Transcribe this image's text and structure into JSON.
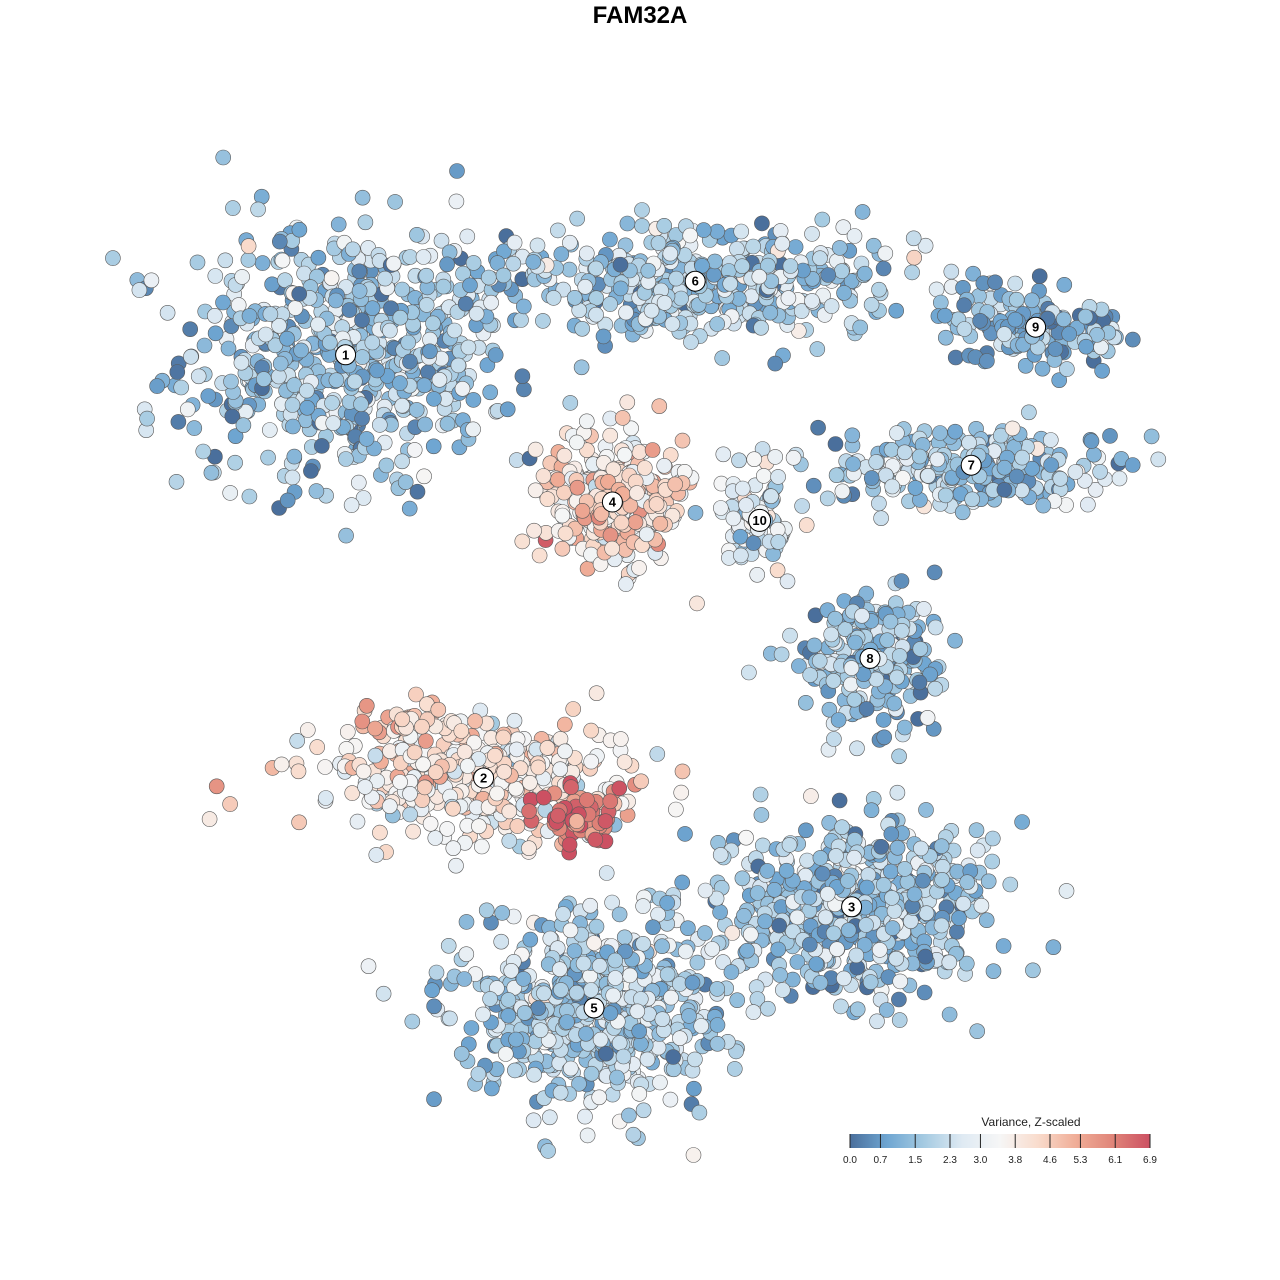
{
  "chart_data": {
    "type": "scatter",
    "title": "FAM32A",
    "xlabel": "",
    "ylabel": "",
    "grid": false,
    "legend": {
      "title": "Variance, Z-scaled",
      "placement": "bottom-right",
      "ticks": [
        "0.0",
        "0.7",
        "1.5",
        "2.3",
        "3.0",
        "3.8",
        "4.6",
        "5.3",
        "6.1",
        "6.9"
      ],
      "range": [
        0.0,
        6.9
      ],
      "colors": [
        "#4a6f9c",
        "#6fa6d2",
        "#a6cbe2",
        "#dfeaf3",
        "#f6f6f6",
        "#f9dccd",
        "#f0ae98",
        "#e08579",
        "#cc5062"
      ]
    },
    "clusters": [
      {
        "id": "1",
        "x": -3.2,
        "y": 3.1,
        "spread": [
          1.6,
          1.3
        ],
        "n": 620,
        "mean": 1.6
      },
      {
        "id": "6",
        "x": 0.6,
        "y": 3.9,
        "spread": [
          2.2,
          0.55
        ],
        "n": 480,
        "mean": 1.9
      },
      {
        "id": "9",
        "x": 4.3,
        "y": 3.4,
        "spread": [
          0.9,
          0.35
        ],
        "n": 140,
        "mean": 1.1
      },
      {
        "id": "7",
        "x": 3.6,
        "y": 1.9,
        "spread": [
          1.5,
          0.4
        ],
        "n": 260,
        "mean": 1.7
      },
      {
        "id": "4",
        "x": -0.3,
        "y": 1.5,
        "spread": [
          0.7,
          0.65
        ],
        "n": 300,
        "mean": 3.8
      },
      {
        "id": "10",
        "x": 1.3,
        "y": 1.3,
        "spread": [
          0.35,
          0.55
        ],
        "n": 90,
        "mean": 2.6
      },
      {
        "id": "8",
        "x": 2.5,
        "y": -0.2,
        "spread": [
          0.7,
          0.6
        ],
        "n": 230,
        "mean": 1.4
      },
      {
        "id": "2",
        "x": -1.7,
        "y": -1.5,
        "spread": [
          1.5,
          0.55
        ],
        "n": 420,
        "mean": 3.6
      },
      {
        "id": "3",
        "x": 2.3,
        "y": -2.9,
        "spread": [
          1.3,
          0.9
        ],
        "n": 560,
        "mean": 1.7
      },
      {
        "id": "5",
        "x": -0.5,
        "y": -4.0,
        "spread": [
          1.3,
          0.9
        ],
        "n": 620,
        "mean": 1.9
      }
    ],
    "hotspots": [
      {
        "x": -0.7,
        "y": -1.9,
        "spread": [
          0.4,
          0.3
        ],
        "n": 60,
        "mean": 6.3
      },
      {
        "x": -2.5,
        "y": -0.9,
        "spread": [
          0.5,
          0.2
        ],
        "n": 40,
        "mean": 4.6
      },
      {
        "x": -0.1,
        "y": 1.4,
        "spread": [
          0.5,
          0.5
        ],
        "n": 60,
        "mean": 4.5
      }
    ],
    "xlim": [
      -6.0,
      6.0
    ],
    "ylim": [
      -6.0,
      6.0
    ]
  }
}
